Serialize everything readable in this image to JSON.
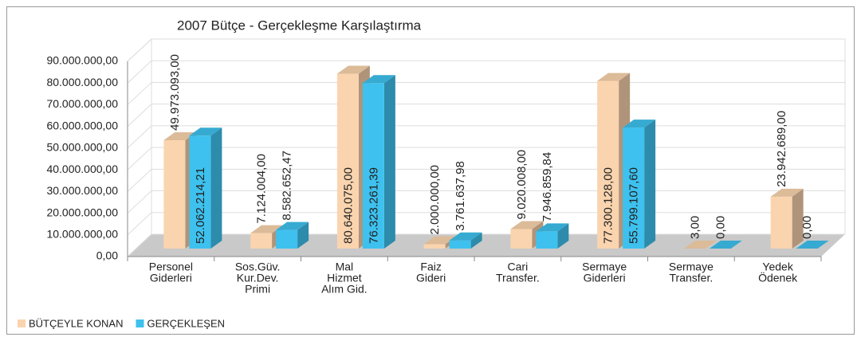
{
  "chart_data": {
    "type": "bar3d",
    "title": "2007 Bütçe - Gerçekleşme Karşılaştırma",
    "categories": [
      [
        "Personel",
        "Giderleri"
      ],
      [
        "Sos.Güv.",
        "Kur.Dev.",
        "Primi"
      ],
      [
        "Mal",
        "Hizmet",
        "Alım Gid."
      ],
      [
        "Faiz",
        "Gideri"
      ],
      [
        "Cari",
        "Transfer."
      ],
      [
        "Sermaye",
        "Giderleri"
      ],
      [
        "Sermaye",
        "Transfer."
      ],
      [
        "Yedek",
        "Ödenek"
      ]
    ],
    "series": [
      {
        "name": "BÜTÇEYLE KONAN",
        "color": "#fad4ae",
        "values": [
          49973093,
          7124004,
          80640075,
          2000000,
          9020008,
          77300128,
          3,
          23942689
        ],
        "value_labels": [
          "49.973.093,00",
          "7.124.004,00",
          "80.640.075,00",
          "2.000.000,00",
          "9.020.008,00",
          "77.300.128,00",
          "3,00",
          "23.942.689,00"
        ]
      },
      {
        "name": "GERÇEKLEŞEN",
        "color": "#3ec1ee",
        "values": [
          52062214.21,
          8582652.47,
          76323261.39,
          3761637.98,
          7946859.84,
          55799107.6,
          0,
          0
        ],
        "value_labels": [
          "52.062.214,21",
          "8.582.652,47",
          "76.323.261,39",
          "3.761.637,98",
          "7.946.859,84",
          "55.799.107,60",
          "0,00",
          "0,00"
        ]
      }
    ],
    "ylim": [
      0,
      90000000
    ],
    "yticks": [
      {
        "value": 0,
        "label": "0,00"
      },
      {
        "value": 10000000,
        "label": "10.000.000,00"
      },
      {
        "value": 20000000,
        "label": "20.000.000,00"
      },
      {
        "value": 30000000,
        "label": "30.000.000,00"
      },
      {
        "value": 40000000,
        "label": "40.000.000,00"
      },
      {
        "value": 50000000,
        "label": "50.000.000,00"
      },
      {
        "value": 60000000,
        "label": "60.000.000,00"
      },
      {
        "value": 70000000,
        "label": "70.000.000,00"
      },
      {
        "value": 80000000,
        "label": "80.000.000,00"
      },
      {
        "value": 90000000,
        "label": "90.000.000,00"
      }
    ],
    "grid": true,
    "legend": "bottom-left"
  }
}
